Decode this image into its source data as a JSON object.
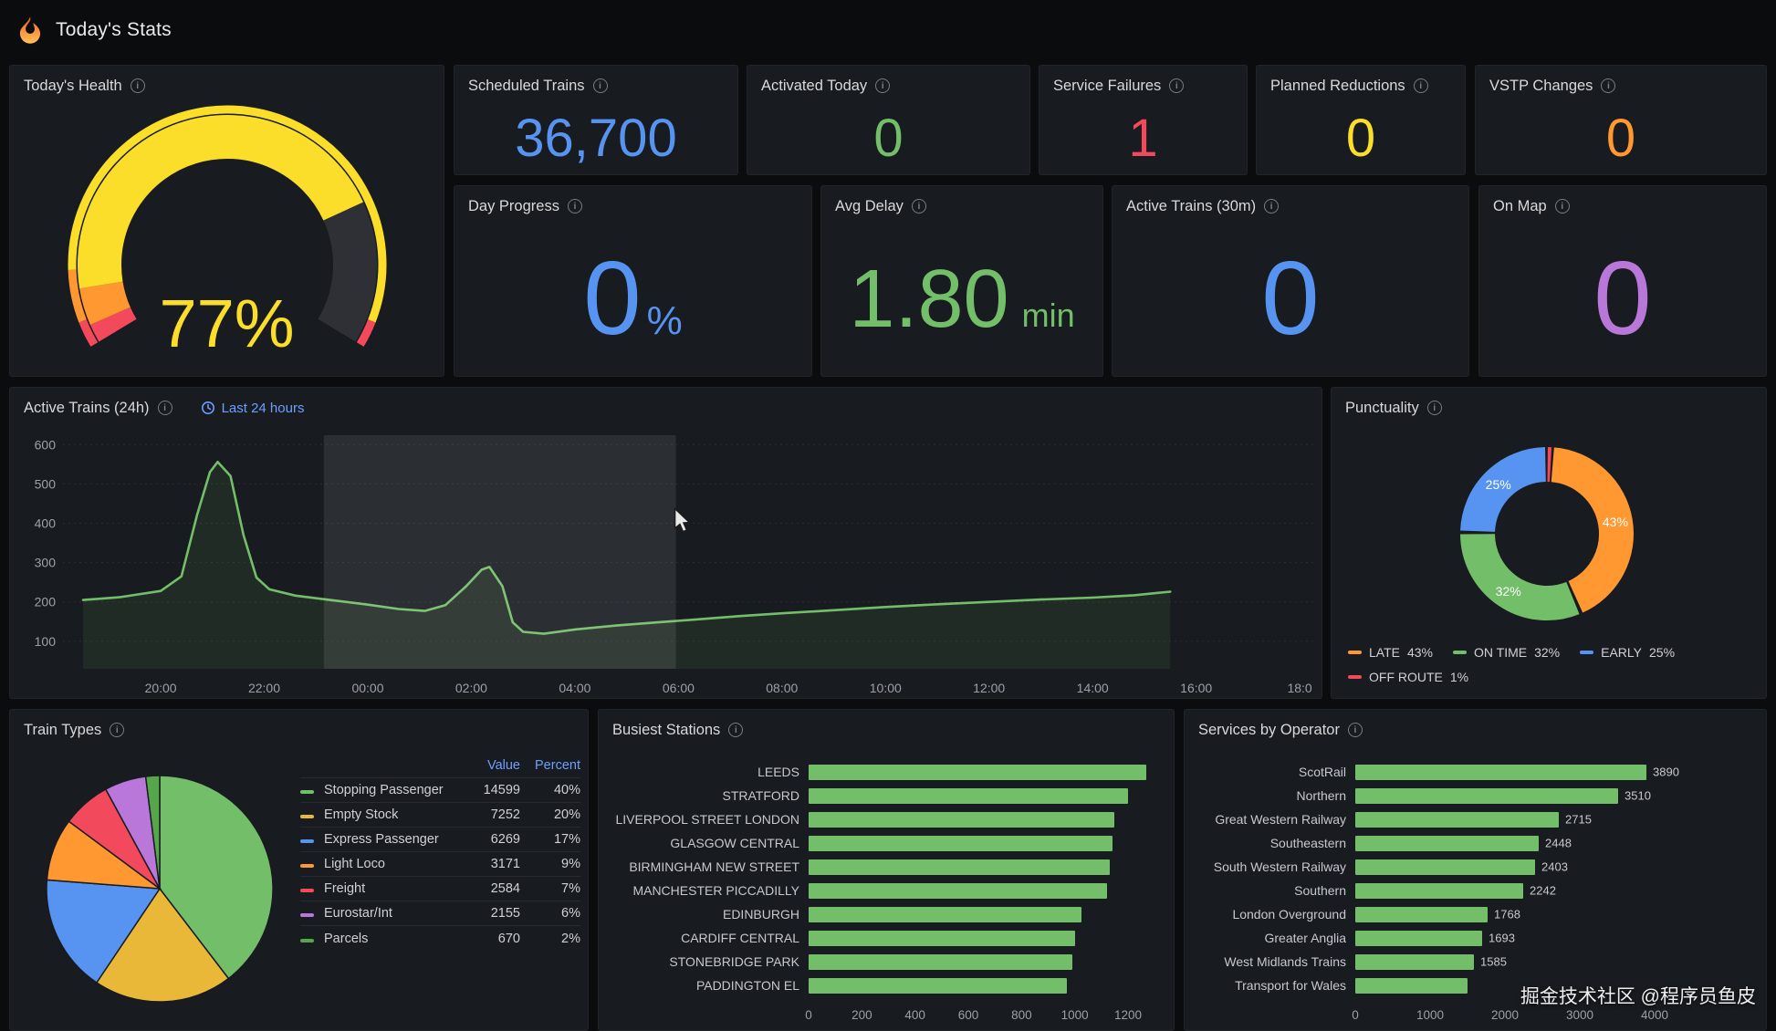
{
  "app": {
    "title": "Today's Stats"
  },
  "watermark": "掘金技术社区 @程序员鱼皮",
  "panels": {
    "todays_health": {
      "title": "Today's Health",
      "gauge": {
        "display": "77%",
        "value": 77,
        "min": 0,
        "max": 100,
        "value_color": "#fade2a",
        "threshold_band": [
          {
            "from": 0,
            "to": 4,
            "color": "#f2495c"
          },
          {
            "from": 4,
            "to": 12,
            "color": "#ff9830"
          },
          {
            "from": 12,
            "to": 96,
            "color": "#fade2a"
          },
          {
            "from": 96,
            "to": 100,
            "color": "#f2495c"
          }
        ],
        "value_arc": [
          {
            "from": 0,
            "to": 3,
            "color": "#f2495c"
          },
          {
            "from": 3,
            "to": 9,
            "color": "#ff9830"
          },
          {
            "from": 9,
            "to": 77,
            "color": "#fade2a"
          },
          {
            "from": 77,
            "to": 100,
            "color": "#2e3036"
          }
        ]
      }
    },
    "scheduled_trains": {
      "title": "Scheduled Trains",
      "value": "36,700",
      "color": "#5794f2"
    },
    "activated_today": {
      "title": "Activated Today",
      "value": "0",
      "color": "#73bf69"
    },
    "service_failures": {
      "title": "Service Failures",
      "value": "1",
      "color": "#f2495c"
    },
    "planned_reductions": {
      "title": "Planned Reductions",
      "value": "0",
      "color": "#fade2a"
    },
    "vstp_changes": {
      "title": "VSTP Changes",
      "value": "0",
      "color": "#ff9830"
    },
    "day_progress": {
      "title": "Day Progress",
      "value": "0",
      "suffix": "%",
      "color": "#5794f2"
    },
    "avg_delay": {
      "title": "Avg Delay",
      "value": "1.80",
      "suffix": "min",
      "color": "#73bf69"
    },
    "active_trains_30m": {
      "title": "Active Trains (30m)",
      "value": "0",
      "color": "#5794f2"
    },
    "on_map": {
      "title": "On Map",
      "value": "0",
      "color": "#b877d9"
    },
    "active_trains_24h": {
      "title": "Active Trains (24h)",
      "time_range_label": "Last 24 hours",
      "chart_data": {
        "type": "line",
        "series_color": "#73bf69",
        "fill_color": "rgba(115,191,105,0.10)",
        "y_min": 30,
        "y_max": 610,
        "y_ticks": [
          100,
          200,
          300,
          400,
          500,
          600
        ],
        "x_ticks": [
          {
            "t": 2,
            "label": "20:00"
          },
          {
            "t": 4,
            "label": "22:00"
          },
          {
            "t": 6,
            "label": "00:00"
          },
          {
            "t": 8,
            "label": "02:00"
          },
          {
            "t": 10,
            "label": "04:00"
          },
          {
            "t": 12,
            "label": "06:00"
          },
          {
            "t": 14,
            "label": "08:00"
          },
          {
            "t": 16,
            "label": "10:00"
          },
          {
            "t": 18,
            "label": "12:00"
          },
          {
            "t": 20,
            "label": "14:00"
          },
          {
            "t": 22,
            "label": "16:00"
          },
          {
            "t": 24,
            "label": "18:0"
          }
        ],
        "points": [
          [
            0.5,
            205
          ],
          [
            1.2,
            212
          ],
          [
            2,
            228
          ],
          [
            2.4,
            265
          ],
          [
            2.7,
            420
          ],
          [
            2.95,
            530
          ],
          [
            3.1,
            556
          ],
          [
            3.35,
            520
          ],
          [
            3.6,
            370
          ],
          [
            3.85,
            262
          ],
          [
            4.1,
            232
          ],
          [
            4.6,
            216
          ],
          [
            5.2,
            206
          ],
          [
            6,
            193
          ],
          [
            6.6,
            182
          ],
          [
            7.1,
            177
          ],
          [
            7.5,
            192
          ],
          [
            7.9,
            240
          ],
          [
            8.2,
            282
          ],
          [
            8.35,
            289
          ],
          [
            8.6,
            240
          ],
          [
            8.8,
            148
          ],
          [
            9,
            124
          ],
          [
            9.4,
            119
          ],
          [
            10,
            130
          ],
          [
            10.8,
            140
          ],
          [
            11.6,
            148
          ],
          [
            12.4,
            156
          ],
          [
            13.2,
            164
          ],
          [
            14,
            171
          ],
          [
            15,
            179
          ],
          [
            16,
            187
          ],
          [
            17,
            194
          ],
          [
            18,
            200
          ],
          [
            19,
            206
          ],
          [
            20,
            211
          ],
          [
            20.8,
            217
          ],
          [
            21.5,
            226
          ]
        ],
        "selection_region": {
          "from_t": 5.15,
          "to_t": 11.95
        }
      }
    },
    "punctuality": {
      "title": "Punctuality",
      "chart_data": {
        "type": "donut",
        "slices": [
          {
            "label": "OFF ROUTE",
            "percent": 1,
            "color": "#f2495c",
            "show_label": false
          },
          {
            "label": "LATE",
            "percent": 43,
            "color": "#ff9830",
            "show_label": true
          },
          {
            "label": "ON TIME",
            "percent": 32,
            "color": "#73bf69",
            "show_label": true
          },
          {
            "label": "EARLY",
            "percent": 25,
            "color": "#5794f2",
            "show_label": true
          }
        ],
        "legend": [
          {
            "label": "LATE",
            "value": "43%",
            "color": "#ff9830"
          },
          {
            "label": "ON TIME",
            "value": "32%",
            "color": "#73bf69"
          },
          {
            "label": "EARLY",
            "value": "25%",
            "color": "#5794f2"
          },
          {
            "label": "OFF ROUTE",
            "value": "1%",
            "color": "#f2495c"
          }
        ]
      }
    },
    "train_types": {
      "title": "Train Types",
      "chart_data": {
        "type": "pie",
        "columns": {
          "value": "Value",
          "percent": "Percent"
        },
        "rows": [
          {
            "label": "Stopping Passenger",
            "value": "14599",
            "percent": "40%",
            "p": 40,
            "color": "#73bf69"
          },
          {
            "label": "Empty Stock",
            "value": "7252",
            "percent": "20%",
            "p": 20,
            "color": "#eab839"
          },
          {
            "label": "Express Passenger",
            "value": "6269",
            "percent": "17%",
            "p": 17,
            "color": "#5794f2"
          },
          {
            "label": "Light Loco",
            "value": "3171",
            "percent": "9%",
            "p": 9,
            "color": "#ff9830"
          },
          {
            "label": "Freight",
            "value": "2584",
            "percent": "7%",
            "p": 7,
            "color": "#f2495c"
          },
          {
            "label": "Eurostar/Int",
            "value": "2155",
            "percent": "6%",
            "p": 6,
            "color": "#b877d9"
          },
          {
            "label": "Parcels",
            "value": "670",
            "percent": "2%",
            "p": 2,
            "color": "#56a64b"
          }
        ]
      }
    },
    "busiest_stations": {
      "title": "Busiest Stations",
      "chart_data": {
        "type": "bar",
        "orientation": "horizontal",
        "bar_color": "#73bf69",
        "axis_max": 1200,
        "axis_ticks": [
          0,
          200,
          400,
          600,
          800,
          1000,
          1200
        ],
        "rows": [
          {
            "label": "LEEDS",
            "value": 1270
          },
          {
            "label": "STRATFORD",
            "value": 1200
          },
          {
            "label": "LIVERPOOL STREET LONDON",
            "value": 1150
          },
          {
            "label": "GLASGOW CENTRAL",
            "value": 1140
          },
          {
            "label": "BIRMINGHAM NEW STREET",
            "value": 1130
          },
          {
            "label": "MANCHESTER PICCADILLY",
            "value": 1120
          },
          {
            "label": "EDINBURGH",
            "value": 1025
          },
          {
            "label": "CARDIFF CENTRAL",
            "value": 1000
          },
          {
            "label": "STONEBRIDGE PARK",
            "value": 990
          },
          {
            "label": "PADDINGTON EL",
            "value": 970
          }
        ]
      }
    },
    "services_by_operator": {
      "title": "Services by Operator",
      "chart_data": {
        "type": "bar",
        "orientation": "horizontal",
        "bar_color": "#73bf69",
        "axis_max": 4000,
        "axis_ticks": [
          0,
          1000,
          2000,
          3000,
          4000
        ],
        "rows": [
          {
            "label": "ScotRail",
            "value": 3890,
            "show_value": true
          },
          {
            "label": "Northern",
            "value": 3510,
            "show_value": true
          },
          {
            "label": "Great Western Railway",
            "value": 2715,
            "show_value": true
          },
          {
            "label": "Southeastern",
            "value": 2448,
            "show_value": true
          },
          {
            "label": "South Western Railway",
            "value": 2403,
            "show_value": true
          },
          {
            "label": "Southern",
            "value": 2242,
            "show_value": true
          },
          {
            "label": "London Overground",
            "value": 1768,
            "show_value": true
          },
          {
            "label": "Greater Anglia",
            "value": 1693,
            "show_value": true
          },
          {
            "label": "West Midlands Trains",
            "value": 1585,
            "show_value": true
          },
          {
            "label": "Transport for Wales",
            "value": 1500,
            "show_value": false
          }
        ]
      }
    }
  }
}
